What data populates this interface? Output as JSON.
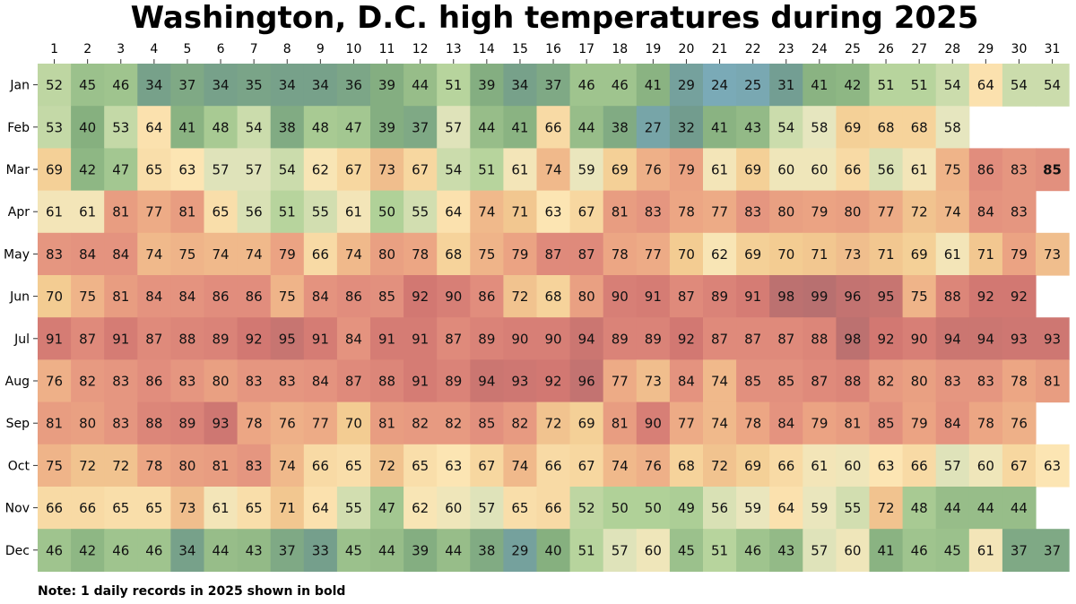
{
  "chart_data": {
    "type": "heatmap",
    "title": "Washington, D.C. high temperatures during 2025",
    "note": "Note: 1 daily records in 2025 shown in bold",
    "days": [
      "1",
      "2",
      "3",
      "4",
      "5",
      "6",
      "7",
      "8",
      "9",
      "10",
      "11",
      "12",
      "13",
      "14",
      "15",
      "16",
      "17",
      "18",
      "19",
      "20",
      "21",
      "22",
      "23",
      "24",
      "25",
      "26",
      "27",
      "28",
      "29",
      "30",
      "31"
    ],
    "months": [
      "Jan",
      "Feb",
      "Mar",
      "Apr",
      "May",
      "Jun",
      "Jul",
      "Aug",
      "Sep",
      "Oct",
      "Nov",
      "Dec"
    ],
    "values": [
      [
        52,
        45,
        46,
        34,
        37,
        34,
        35,
        34,
        34,
        36,
        39,
        44,
        51,
        39,
        34,
        37,
        46,
        46,
        41,
        29,
        24,
        25,
        31,
        41,
        42,
        51,
        51,
        54,
        64,
        54,
        54
      ],
      [
        53,
        40,
        53,
        64,
        41,
        48,
        54,
        38,
        48,
        47,
        39,
        37,
        57,
        44,
        41,
        66,
        44,
        38,
        27,
        32,
        41,
        43,
        54,
        58,
        69,
        68,
        68,
        58,
        null,
        null,
        null
      ],
      [
        69,
        42,
        47,
        65,
        63,
        57,
        57,
        54,
        62,
        67,
        73,
        67,
        54,
        51,
        61,
        74,
        59,
        69,
        76,
        79,
        61,
        69,
        60,
        60,
        66,
        56,
        61,
        75,
        86,
        83,
        85
      ],
      [
        61,
        61,
        81,
        77,
        81,
        65,
        56,
        51,
        55,
        61,
        50,
        55,
        64,
        74,
        71,
        63,
        67,
        81,
        83,
        78,
        77,
        83,
        80,
        79,
        80,
        77,
        72,
        74,
        84,
        83,
        null
      ],
      [
        83,
        84,
        84,
        74,
        75,
        74,
        74,
        79,
        66,
        74,
        80,
        78,
        68,
        75,
        79,
        87,
        87,
        78,
        77,
        70,
        62,
        69,
        70,
        71,
        73,
        71,
        69,
        61,
        71,
        79,
        73
      ],
      [
        70,
        75,
        81,
        84,
        84,
        86,
        86,
        75,
        84,
        86,
        85,
        92,
        90,
        86,
        72,
        68,
        80,
        90,
        91,
        87,
        89,
        91,
        98,
        99,
        96,
        95,
        75,
        88,
        92,
        92,
        null
      ],
      [
        91,
        87,
        91,
        87,
        88,
        89,
        92,
        95,
        91,
        84,
        91,
        91,
        87,
        89,
        90,
        90,
        94,
        89,
        89,
        92,
        87,
        87,
        87,
        88,
        98,
        92,
        90,
        94,
        94,
        93,
        93
      ],
      [
        76,
        82,
        83,
        86,
        83,
        80,
        83,
        83,
        84,
        87,
        88,
        91,
        89,
        94,
        93,
        92,
        96,
        77,
        73,
        84,
        74,
        85,
        85,
        87,
        88,
        82,
        80,
        83,
        83,
        78,
        81
      ],
      [
        81,
        80,
        83,
        88,
        89,
        93,
        78,
        76,
        77,
        70,
        81,
        82,
        82,
        85,
        82,
        72,
        69,
        81,
        90,
        77,
        74,
        78,
        84,
        79,
        81,
        85,
        79,
        84,
        78,
        76,
        null
      ],
      [
        75,
        72,
        72,
        78,
        80,
        81,
        83,
        74,
        66,
        65,
        72,
        65,
        63,
        67,
        74,
        66,
        67,
        74,
        76,
        68,
        72,
        69,
        66,
        61,
        60,
        63,
        66,
        57,
        60,
        67,
        63
      ],
      [
        66,
        66,
        65,
        65,
        73,
        61,
        65,
        71,
        64,
        55,
        47,
        62,
        60,
        57,
        65,
        66,
        52,
        50,
        50,
        49,
        56,
        59,
        64,
        59,
        55,
        72,
        48,
        44,
        44,
        44,
        null
      ],
      [
        46,
        42,
        46,
        46,
        34,
        44,
        43,
        37,
        33,
        45,
        44,
        39,
        44,
        38,
        29,
        40,
        51,
        57,
        60,
        45,
        51,
        46,
        43,
        57,
        60,
        41,
        46,
        45,
        61,
        37,
        37
      ]
    ],
    "records": [
      [
        2,
        30
      ]
    ],
    "xlabel": "",
    "ylabel": "",
    "color_scale": "cool (blue-green) to hot (red)"
  }
}
